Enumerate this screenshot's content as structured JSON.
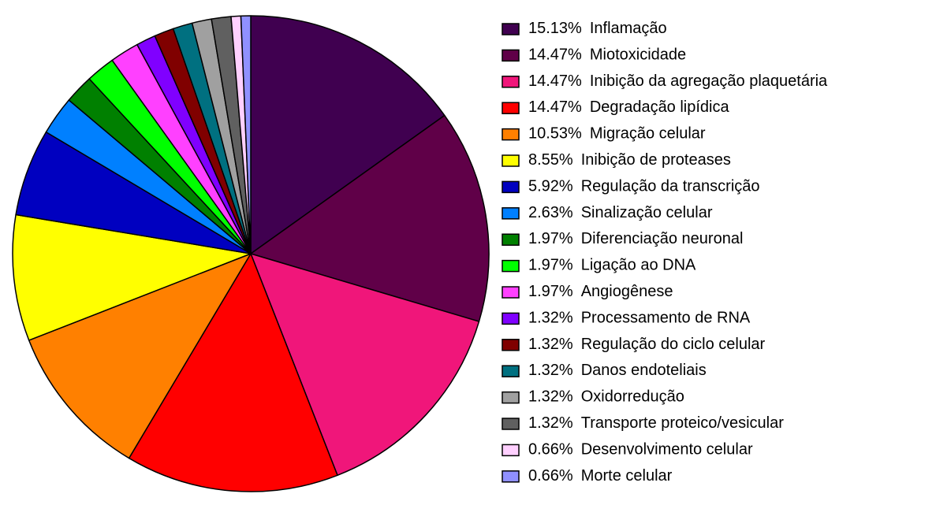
{
  "chart_data": {
    "type": "pie",
    "categories": [
      "Inflamação",
      "Miotoxicidade",
      "Inibição da agregação plaquetária",
      "Degradação lipídica",
      "Migração celular",
      "Inibição de proteases",
      "Regulação da transcrição",
      "Sinalização celular",
      "Diferenciação neuronal",
      "Ligação ao DNA",
      "Angiogênese",
      "Processamento de RNA",
      "Regulação do ciclo celular",
      "Danos endoteliais",
      "Oxidorredução",
      "Transporte proteico/vesicular",
      "Desenvolvimento celular",
      "Morte celular"
    ],
    "values": [
      15.13,
      14.47,
      14.47,
      14.47,
      10.53,
      8.55,
      5.92,
      2.63,
      1.97,
      1.97,
      1.97,
      1.32,
      1.32,
      1.32,
      1.32,
      1.32,
      0.66,
      0.66
    ],
    "value_labels": [
      "15.13%",
      "14.47%",
      "14.47%",
      "14.47%",
      "10.53%",
      "8.55%",
      "5.92%",
      "2.63%",
      "1.97%",
      "1.97%",
      "1.97%",
      "1.32%",
      "1.32%",
      "1.32%",
      "1.32%",
      "1.32%",
      "0.66%",
      "0.66%"
    ],
    "colors": [
      "#400050",
      "#600048",
      "#f0167a",
      "#ff0000",
      "#ff8000",
      "#ffff00",
      "#0000c0",
      "#0080ff",
      "#008000",
      "#00ff00",
      "#ff40ff",
      "#8000ff",
      "#800000",
      "#007080",
      "#a0a0a0",
      "#606060",
      "#ffd0ff",
      "#9090ff"
    ],
    "legend": "right"
  }
}
